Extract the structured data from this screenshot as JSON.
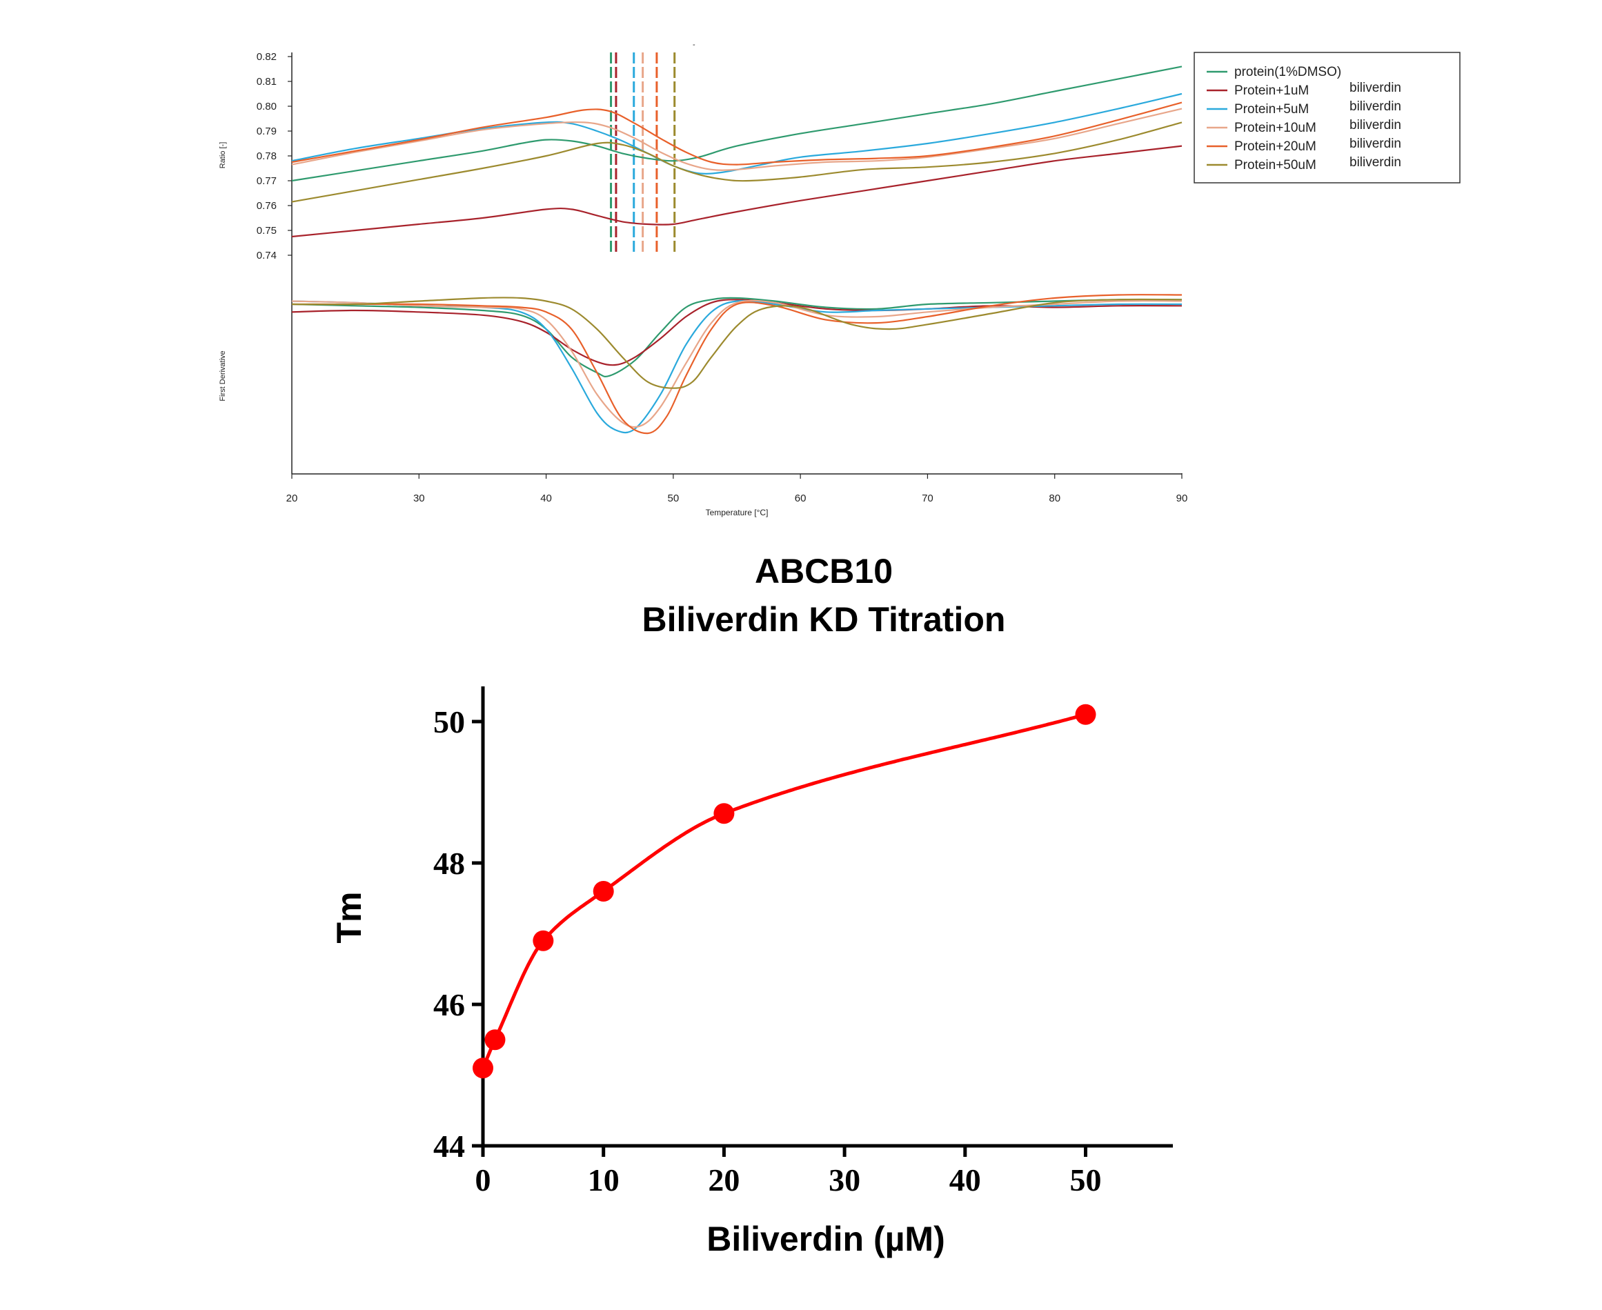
{
  "chart_data": [
    {
      "type": "line",
      "xlabel": "Temperature [°C]",
      "ylabel_top": "Ratio [-]",
      "ylabel_bottom": "First Derivative",
      "xlim": [
        20,
        90
      ],
      "ylim_top": [
        0.74,
        0.82
      ],
      "xticks": [
        "20",
        "30",
        "40",
        "50",
        "60",
        "70",
        "80",
        "90"
      ],
      "yticks_top": [
        "0.82",
        "0.81",
        "0.80",
        "0.79",
        "0.78",
        "0.77",
        "0.76",
        "0.75",
        "0.74"
      ],
      "legend_position": "top-right",
      "series": [
        {
          "name": "protein(1%DMSO)",
          "suffix": "",
          "color": "#2e9a6e",
          "tm": 45.1,
          "ratio": [
            [
              20,
              0.77
            ],
            [
              25,
              0.774
            ],
            [
              30,
              0.778
            ],
            [
              35,
              0.782
            ],
            [
              38,
              0.785
            ],
            [
              40,
              0.7865
            ],
            [
              42,
              0.786
            ],
            [
              44,
              0.784
            ],
            [
              46,
              0.781
            ],
            [
              48,
              0.779
            ],
            [
              50,
              0.778
            ],
            [
              52,
              0.7795
            ],
            [
              55,
              0.784
            ],
            [
              60,
              0.789
            ],
            [
              65,
              0.793
            ],
            [
              70,
              0.797
            ],
            [
              75,
              0.801
            ],
            [
              80,
              0.806
            ],
            [
              85,
              0.811
            ],
            [
              90,
              0.816
            ]
          ],
          "deriv": [
            [
              20,
              0.04
            ],
            [
              25,
              0.05
            ],
            [
              30,
              0.06
            ],
            [
              35,
              0.08
            ],
            [
              38,
              0.11
            ],
            [
              40,
              0.2
            ],
            [
              42,
              0.38
            ],
            [
              44,
              0.48
            ],
            [
              45,
              0.5
            ],
            [
              47,
              0.4
            ],
            [
              49,
              0.22
            ],
            [
              51,
              0.06
            ],
            [
              53,
              0.01
            ],
            [
              55,
              0.0
            ],
            [
              58,
              0.02
            ],
            [
              62,
              0.06
            ],
            [
              66,
              0.07
            ],
            [
              70,
              0.04
            ],
            [
              75,
              0.03
            ],
            [
              80,
              0.02
            ],
            [
              85,
              0.01
            ],
            [
              90,
              0.01
            ]
          ]
        },
        {
          "name": "Protein+1uM",
          "suffix": "biliverdin",
          "color": "#a8222b",
          "tm": 45.5,
          "ratio": [
            [
              20,
              0.7475
            ],
            [
              25,
              0.75
            ],
            [
              30,
              0.7525
            ],
            [
              35,
              0.755
            ],
            [
              40,
              0.7585
            ],
            [
              42,
              0.7585
            ],
            [
              44,
              0.756
            ],
            [
              46,
              0.7535
            ],
            [
              48,
              0.7525
            ],
            [
              50,
              0.7525
            ],
            [
              52,
              0.7545
            ],
            [
              55,
              0.7575
            ],
            [
              60,
              0.762
            ],
            [
              65,
              0.766
            ],
            [
              70,
              0.77
            ],
            [
              75,
              0.774
            ],
            [
              80,
              0.778
            ],
            [
              85,
              0.781
            ],
            [
              90,
              0.784
            ]
          ],
          "deriv": [
            [
              20,
              0.09
            ],
            [
              25,
              0.08
            ],
            [
              30,
              0.09
            ],
            [
              35,
              0.11
            ],
            [
              38,
              0.15
            ],
            [
              40,
              0.22
            ],
            [
              42,
              0.33
            ],
            [
              44,
              0.41
            ],
            [
              45.5,
              0.43
            ],
            [
              47,
              0.38
            ],
            [
              49,
              0.26
            ],
            [
              51,
              0.12
            ],
            [
              53,
              0.03
            ],
            [
              55,
              0.01
            ],
            [
              58,
              0.03
            ],
            [
              62,
              0.07
            ],
            [
              66,
              0.08
            ],
            [
              70,
              0.07
            ],
            [
              75,
              0.05
            ],
            [
              80,
              0.06
            ],
            [
              85,
              0.05
            ],
            [
              90,
              0.05
            ]
          ]
        },
        {
          "name": "Protein+5uM",
          "suffix": "biliverdin",
          "color": "#2aa9dc",
          "tm": 46.9,
          "ratio": [
            [
              20,
              0.778
            ],
            [
              25,
              0.783
            ],
            [
              30,
              0.787
            ],
            [
              35,
              0.791
            ],
            [
              40,
              0.7935
            ],
            [
              42,
              0.793
            ],
            [
              44,
              0.79
            ],
            [
              46,
              0.786
            ],
            [
              48,
              0.781
            ],
            [
              50,
              0.776
            ],
            [
              52,
              0.773
            ],
            [
              54,
              0.7735
            ],
            [
              57,
              0.7765
            ],
            [
              60,
              0.7795
            ],
            [
              65,
              0.782
            ],
            [
              70,
              0.785
            ],
            [
              75,
              0.789
            ],
            [
              80,
              0.7935
            ],
            [
              85,
              0.799
            ],
            [
              90,
              0.805
            ]
          ],
          "deriv": [
            [
              20,
              0.02
            ],
            [
              25,
              0.03
            ],
            [
              30,
              0.05
            ],
            [
              35,
              0.06
            ],
            [
              38,
              0.09
            ],
            [
              40,
              0.2
            ],
            [
              42,
              0.45
            ],
            [
              44,
              0.74
            ],
            [
              45.5,
              0.85
            ],
            [
              47,
              0.84
            ],
            [
              49,
              0.62
            ],
            [
              51,
              0.3
            ],
            [
              53,
              0.09
            ],
            [
              55,
              0.02
            ],
            [
              58,
              0.04
            ],
            [
              62,
              0.09
            ],
            [
              66,
              0.08
            ],
            [
              70,
              0.07
            ],
            [
              75,
              0.06
            ],
            [
              80,
              0.05
            ],
            [
              85,
              0.04
            ],
            [
              90,
              0.04
            ]
          ]
        },
        {
          "name": "Protein+10uM",
          "suffix": "biliverdin",
          "color": "#e8a68a",
          "tm": 47.6,
          "ratio": [
            [
              20,
              0.7765
            ],
            [
              25,
              0.7815
            ],
            [
              30,
              0.786
            ],
            [
              35,
              0.7905
            ],
            [
              40,
              0.793
            ],
            [
              43,
              0.7935
            ],
            [
              45,
              0.7915
            ],
            [
              47,
              0.787
            ],
            [
              49,
              0.7815
            ],
            [
              51,
              0.777
            ],
            [
              53,
              0.7745
            ],
            [
              55,
              0.7745
            ],
            [
              58,
              0.776
            ],
            [
              62,
              0.7775
            ],
            [
              66,
              0.778
            ],
            [
              70,
              0.7795
            ],
            [
              75,
              0.783
            ],
            [
              80,
              0.787
            ],
            [
              85,
              0.793
            ],
            [
              90,
              0.799
            ]
          ],
          "deriv": [
            [
              20,
              0.02
            ],
            [
              25,
              0.03
            ],
            [
              30,
              0.05
            ],
            [
              35,
              0.06
            ],
            [
              38,
              0.07
            ],
            [
              40,
              0.14
            ],
            [
              42,
              0.34
            ],
            [
              44,
              0.62
            ],
            [
              46,
              0.8
            ],
            [
              47.5,
              0.82
            ],
            [
              49,
              0.7
            ],
            [
              51,
              0.42
            ],
            [
              53,
              0.16
            ],
            [
              55,
              0.03
            ],
            [
              58,
              0.03
            ],
            [
              62,
              0.11
            ],
            [
              66,
              0.12
            ],
            [
              70,
              0.09
            ],
            [
              75,
              0.06
            ],
            [
              80,
              0.04
            ],
            [
              85,
              0.02
            ],
            [
              90,
              0.02
            ]
          ]
        },
        {
          "name": "Protein+20uM",
          "suffix": "biliverdin",
          "color": "#e8602a",
          "tm": 48.7,
          "ratio": [
            [
              20,
              0.7775
            ],
            [
              25,
              0.782
            ],
            [
              30,
              0.7865
            ],
            [
              35,
              0.7915
            ],
            [
              40,
              0.7955
            ],
            [
              43,
              0.7985
            ],
            [
              45,
              0.798
            ],
            [
              47,
              0.793
            ],
            [
              49,
              0.787
            ],
            [
              51,
              0.7815
            ],
            [
              53,
              0.7775
            ],
            [
              55,
              0.7765
            ],
            [
              58,
              0.7775
            ],
            [
              62,
              0.7785
            ],
            [
              66,
              0.779
            ],
            [
              70,
              0.78
            ],
            [
              75,
              0.7835
            ],
            [
              80,
              0.788
            ],
            [
              85,
              0.7945
            ],
            [
              90,
              0.8015
            ]
          ],
          "deriv": [
            [
              20,
              0.04
            ],
            [
              25,
              0.04
            ],
            [
              30,
              0.04
            ],
            [
              35,
              0.05
            ],
            [
              38,
              0.06
            ],
            [
              40,
              0.09
            ],
            [
              42,
              0.2
            ],
            [
              44,
              0.48
            ],
            [
              46,
              0.78
            ],
            [
              48,
              0.87
            ],
            [
              49.5,
              0.76
            ],
            [
              51,
              0.5
            ],
            [
              53,
              0.2
            ],
            [
              55,
              0.04
            ],
            [
              58,
              0.05
            ],
            [
              62,
              0.14
            ],
            [
              66,
              0.16
            ],
            [
              70,
              0.12
            ],
            [
              75,
              0.05
            ],
            [
              80,
              0.0
            ],
            [
              85,
              -0.02
            ],
            [
              90,
              -0.02
            ]
          ]
        },
        {
          "name": "Protein+50uM",
          "suffix": "biliverdin",
          "color": "#9c8a2e",
          "tm": 50.1,
          "ratio": [
            [
              20,
              0.7615
            ],
            [
              25,
              0.766
            ],
            [
              30,
              0.7705
            ],
            [
              35,
              0.775
            ],
            [
              40,
              0.78
            ],
            [
              44,
              0.785
            ],
            [
              46,
              0.7845
            ],
            [
              48,
              0.781
            ],
            [
              50,
              0.776
            ],
            [
              52,
              0.7725
            ],
            [
              54,
              0.7705
            ],
            [
              56,
              0.77
            ],
            [
              60,
              0.7715
            ],
            [
              65,
              0.7745
            ],
            [
              70,
              0.7755
            ],
            [
              75,
              0.7775
            ],
            [
              80,
              0.781
            ],
            [
              85,
              0.7865
            ],
            [
              90,
              0.7935
            ]
          ],
          "deriv": [
            [
              20,
              0.04
            ],
            [
              25,
              0.04
            ],
            [
              30,
              0.02
            ],
            [
              35,
              0.0
            ],
            [
              38,
              0.0
            ],
            [
              40,
              0.02
            ],
            [
              42,
              0.07
            ],
            [
              44,
              0.2
            ],
            [
              46,
              0.38
            ],
            [
              48,
              0.54
            ],
            [
              50,
              0.58
            ],
            [
              51.5,
              0.54
            ],
            [
              53,
              0.38
            ],
            [
              55,
              0.18
            ],
            [
              57,
              0.07
            ],
            [
              60,
              0.06
            ],
            [
              64,
              0.17
            ],
            [
              67,
              0.2
            ],
            [
              70,
              0.17
            ],
            [
              75,
              0.1
            ],
            [
              80,
              0.03
            ],
            [
              85,
              0.01
            ],
            [
              90,
              0.01
            ]
          ]
        }
      ]
    },
    {
      "type": "scatter",
      "title_line1": "ABCB10",
      "title_line2": "Biliverdin KD Titration",
      "xlabel": "Biliverdin (µM)",
      "ylabel": "Tm",
      "xlim": [
        0,
        57
      ],
      "ylim": [
        44,
        50.7
      ],
      "xticks": [
        "0",
        "10",
        "20",
        "30",
        "40",
        "50"
      ],
      "yticks": [
        "44",
        "46",
        "48",
        "50"
      ],
      "color": "#ff0000",
      "points": [
        [
          0,
          45.1
        ],
        [
          1,
          45.5
        ],
        [
          5,
          46.9
        ],
        [
          10,
          47.6
        ],
        [
          20,
          48.7
        ],
        [
          50,
          50.1
        ]
      ],
      "fit_curve": true
    }
  ]
}
